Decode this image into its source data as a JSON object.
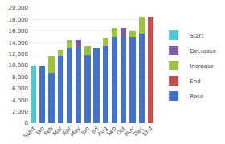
{
  "chart_data": {
    "type": "bar",
    "stacked": true,
    "categories": [
      "Start",
      "Jan",
      "Feb",
      "Mar",
      "Apr",
      "May",
      "Jun",
      "Jul",
      "Aug",
      "Sep",
      "Oct",
      "Nov",
      "Dec",
      "End"
    ],
    "series": [
      {
        "name": "Start",
        "color": "#4DC8D4",
        "values": [
          10000,
          null,
          null,
          null,
          null,
          null,
          null,
          null,
          null,
          null,
          null,
          null,
          null,
          null
        ]
      },
      {
        "name": "Decrease",
        "color": "#7F5DA2",
        "values": [
          null,
          null,
          null,
          null,
          null,
          1400,
          null,
          null,
          null,
          null,
          1500,
          null,
          null,
          null
        ]
      },
      {
        "name": "Increase",
        "color": "#9DC243",
        "values": [
          null,
          null,
          2800,
          1200,
          1500,
          null,
          1500,
          null,
          1500,
          1500,
          null,
          1000,
          3000,
          null
        ]
      },
      {
        "name": "End",
        "color": "#C0504D",
        "values": [
          null,
          null,
          null,
          null,
          null,
          null,
          null,
          null,
          null,
          null,
          null,
          null,
          null,
          18500
        ]
      },
      {
        "name": "Base",
        "color": "#4472C4",
        "values": [
          null,
          9800,
          8800,
          11600,
          13000,
          13000,
          11800,
          13000,
          13300,
          15000,
          15000,
          15000,
          15500,
          null
        ]
      }
    ],
    "ylim": [
      0,
      20000
    ],
    "yticks": [
      0,
      {
        "value": 2000,
        "label": "2,000"
      },
      {
        "value": 4000,
        "label": "4,000"
      },
      {
        "value": 6000,
        "label": "6,000"
      },
      {
        "value": 8000,
        "label": "8,000"
      },
      {
        "value": 10000,
        "label": "10,000"
      },
      {
        "value": 12000,
        "label": "12,000"
      },
      {
        "value": 14000,
        "label": "14,000"
      },
      {
        "value": 16000,
        "label": "16,000"
      },
      {
        "value": 18000,
        "label": "18,000"
      },
      {
        "value": 20000,
        "label": "20,000"
      }
    ],
    "grid": true,
    "legend": "right"
  }
}
